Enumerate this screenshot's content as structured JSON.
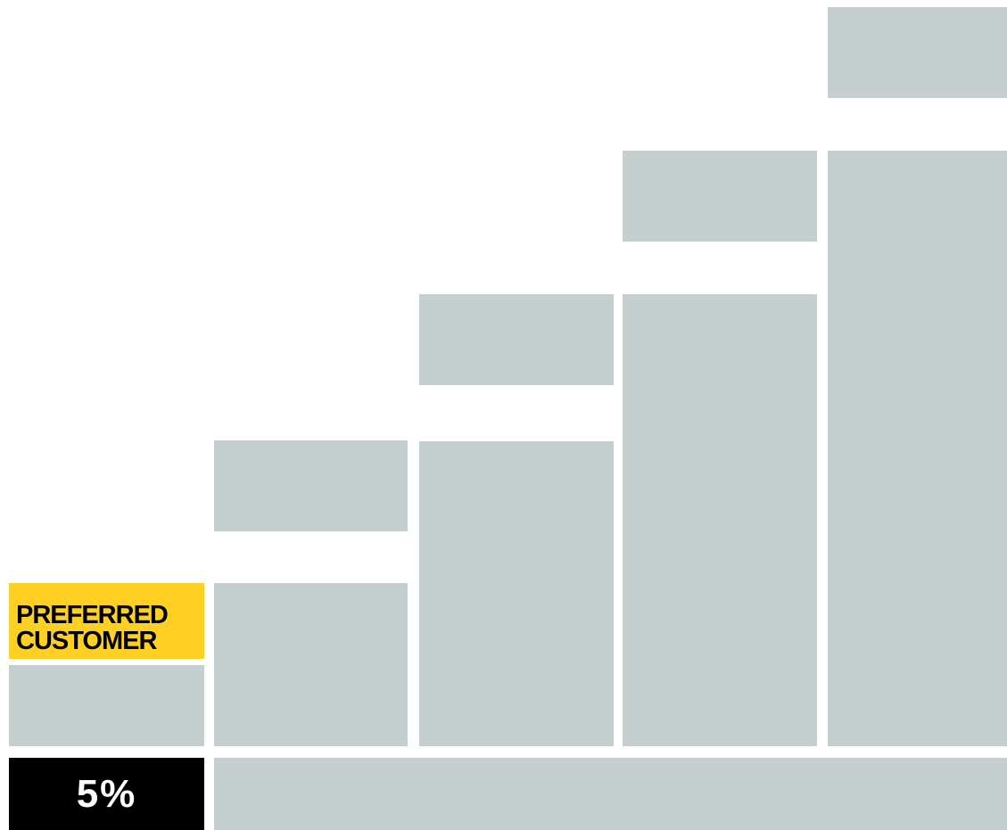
{
  "tier": {
    "label_line1": "PREFERRED",
    "label_line2": "CUSTOMER",
    "percent": "5%"
  },
  "colors": {
    "accent": "#ffd024",
    "block": "#c5cfd0",
    "percent_bg": "#000000"
  }
}
